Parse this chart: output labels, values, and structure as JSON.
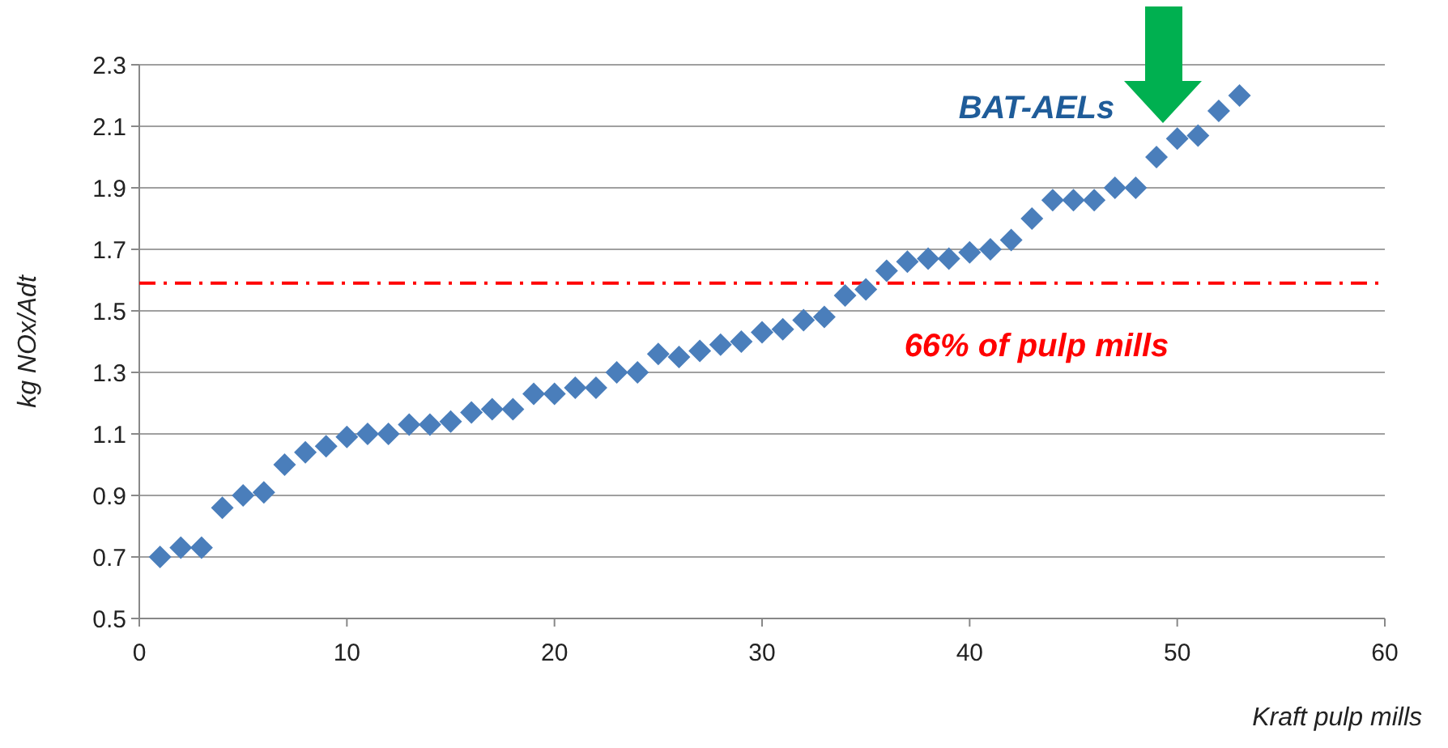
{
  "chart_data": {
    "type": "scatter",
    "xlabel": "Kraft pulp mills",
    "ylabel": "kg NOx/Adt",
    "x": [
      1,
      2,
      3,
      4,
      5,
      6,
      7,
      8,
      9,
      10,
      11,
      12,
      13,
      14,
      15,
      16,
      17,
      18,
      19,
      20,
      21,
      22,
      23,
      24,
      25,
      26,
      27,
      28,
      29,
      30,
      31,
      32,
      33,
      34,
      35,
      36,
      37,
      38,
      39,
      40,
      41,
      42,
      43,
      44,
      45,
      46,
      47,
      48,
      49,
      50,
      51,
      52,
      53
    ],
    "series": [
      {
        "color": "#4a7ebb",
        "values": [
          0.7,
          0.73,
          0.73,
          0.86,
          0.9,
          0.91,
          1.0,
          1.04,
          1.06,
          1.09,
          1.1,
          1.1,
          1.13,
          1.13,
          1.14,
          1.17,
          1.18,
          1.18,
          1.23,
          1.23,
          1.25,
          1.25,
          1.3,
          1.3,
          1.36,
          1.35,
          1.37,
          1.39,
          1.4,
          1.43,
          1.44,
          1.47,
          1.48,
          1.55,
          1.57,
          1.63,
          1.66,
          1.67,
          1.67,
          1.69,
          1.7,
          1.73,
          1.8,
          1.86,
          1.86,
          1.86,
          1.9,
          1.9,
          2.0,
          2.06,
          2.07,
          2.15,
          2.2
        ]
      }
    ],
    "marker": "diamond",
    "grid": "y",
    "xlim": [
      0,
      60
    ],
    "xticks": [
      0,
      10,
      20,
      30,
      40,
      50,
      60
    ],
    "ylim": [
      0.5,
      2.3
    ],
    "yticks": [
      {
        "value": 0.5,
        "label": "0.5"
      },
      {
        "value": 0.7,
        "label": "0.7"
      },
      {
        "value": 0.9,
        "label": "0.9"
      },
      {
        "value": 1.1,
        "label": "1.1"
      },
      {
        "value": 1.3,
        "label": "1.3"
      },
      {
        "value": 1.5,
        "label": "1.5"
      },
      {
        "value": 1.7,
        "label": "1.7"
      },
      {
        "value": 1.9,
        "label": "1.9"
      },
      {
        "value": 2.1,
        "label": "2.1"
      },
      {
        "value": 2.3,
        "label": "2.3"
      }
    ],
    "ref_lines": [
      {
        "axis": "y",
        "value": 1.59,
        "color": "#ff0000",
        "line_style": "dashdot"
      }
    ],
    "annotations": [
      "BAT-AELs",
      "66% of pulp mills"
    ]
  }
}
